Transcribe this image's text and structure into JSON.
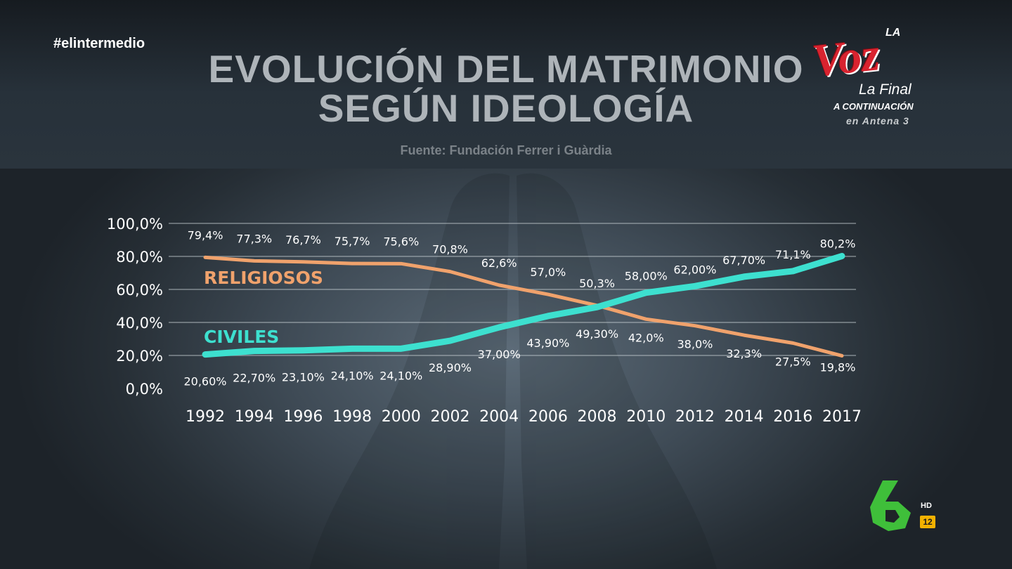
{
  "channel_hashtag": "#elintermedio",
  "title_line1": "EVOLUCIÓN DEL MATRIMONIO",
  "title_line2": "SEGÚN IDEOLOGÍA",
  "source": "Fuente: Fundación Ferrer i Guàrdia",
  "promo": {
    "logo_text": "Voz",
    "logo_prefix": "LA",
    "line1": "La Final",
    "line2": "A CONTINUACIÓN",
    "line3": "en Antena 3"
  },
  "channel_logo": {
    "hd_label": "HD",
    "age_rating": "12"
  },
  "colors": {
    "religiosos": "#f0a26c",
    "civiles": "#3de0cf",
    "text": "#ffffff"
  },
  "chart_data": {
    "type": "line",
    "title": "EVOLUCIÓN DEL MATRIMONIO SEGÚN IDEOLOGÍA",
    "categories": [
      "1992",
      "1994",
      "1996",
      "1998",
      "2000",
      "2002",
      "2004",
      "2006",
      "2008",
      "2010",
      "2012",
      "2014",
      "2016",
      "2017"
    ],
    "y_ticks": [
      "0,0%",
      "20,0%",
      "40,0%",
      "60,0%",
      "80,0%",
      "100,0%"
    ],
    "ylim": [
      0,
      100
    ],
    "grid": true,
    "series": [
      {
        "name": "RELIGIOSOS",
        "color": "#f0a26c",
        "values": [
          79.4,
          77.3,
          76.7,
          75.7,
          75.6,
          70.8,
          62.6,
          57.0,
          50.3,
          42.0,
          38.0,
          32.3,
          27.5,
          19.8
        ],
        "labels": [
          "79,4%",
          "77,3%",
          "76,7%",
          "75,7%",
          "75,6%",
          "70,8%",
          "62,6%",
          "57,0%",
          "50,3%",
          "42,0%",
          "38,0%",
          "32,3%",
          "27,5%",
          "19,8%"
        ]
      },
      {
        "name": "CIVILES",
        "color": "#3de0cf",
        "values": [
          20.6,
          22.7,
          23.1,
          24.1,
          24.1,
          28.9,
          37.0,
          43.9,
          49.3,
          58.0,
          62.0,
          67.7,
          71.1,
          80.2
        ],
        "labels": [
          "20,60%",
          "22,70%",
          "23,10%",
          "24,10%",
          "24,10%",
          "28,90%",
          "37,00%",
          "43,90%",
          "49,30%",
          "58,00%",
          "62,00%",
          "67,70%",
          "71,1%",
          "80,2%"
        ]
      }
    ]
  }
}
